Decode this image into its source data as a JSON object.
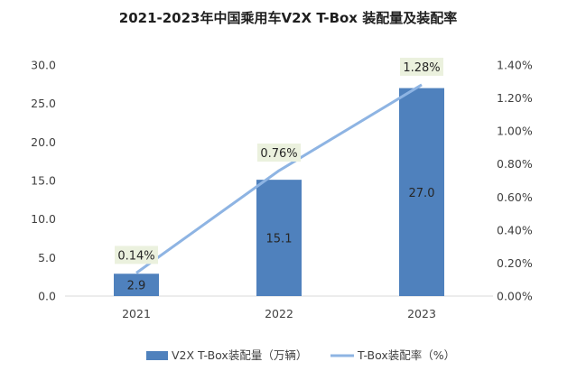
{
  "chart_data": {
    "type": "bar",
    "title": "2021-2023年中国乘用车V2X T-Box 装配量及装配率",
    "categories": [
      "2021",
      "2022",
      "2023"
    ],
    "series": [
      {
        "name": "V2X T-Box装配量（万辆）",
        "type": "bar",
        "axis": "left",
        "values": [
          2.9,
          15.1,
          27.0
        ],
        "labels": [
          "2.9",
          "15.1",
          "27.0"
        ],
        "color": "#4f81bd"
      },
      {
        "name": "T-Box装配率（%）",
        "type": "line",
        "axis": "right",
        "values": [
          0.14,
          0.76,
          1.28
        ],
        "labels": [
          "0.14%",
          "0.76%",
          "1.28%"
        ],
        "color": "#8eb4e3"
      }
    ],
    "y_left": {
      "lim": [
        0,
        30
      ],
      "ticks": [
        "0.0",
        "5.0",
        "10.0",
        "15.0",
        "20.0",
        "25.0",
        "30.0"
      ]
    },
    "y_right": {
      "lim": [
        0,
        1.4
      ],
      "ticks": [
        "0.00%",
        "0.20%",
        "0.40%",
        "0.60%",
        "0.80%",
        "1.00%",
        "1.20%",
        "1.40%"
      ]
    },
    "label_box_color": "#ebf1de",
    "grid": false,
    "legend_position": "bottom"
  }
}
